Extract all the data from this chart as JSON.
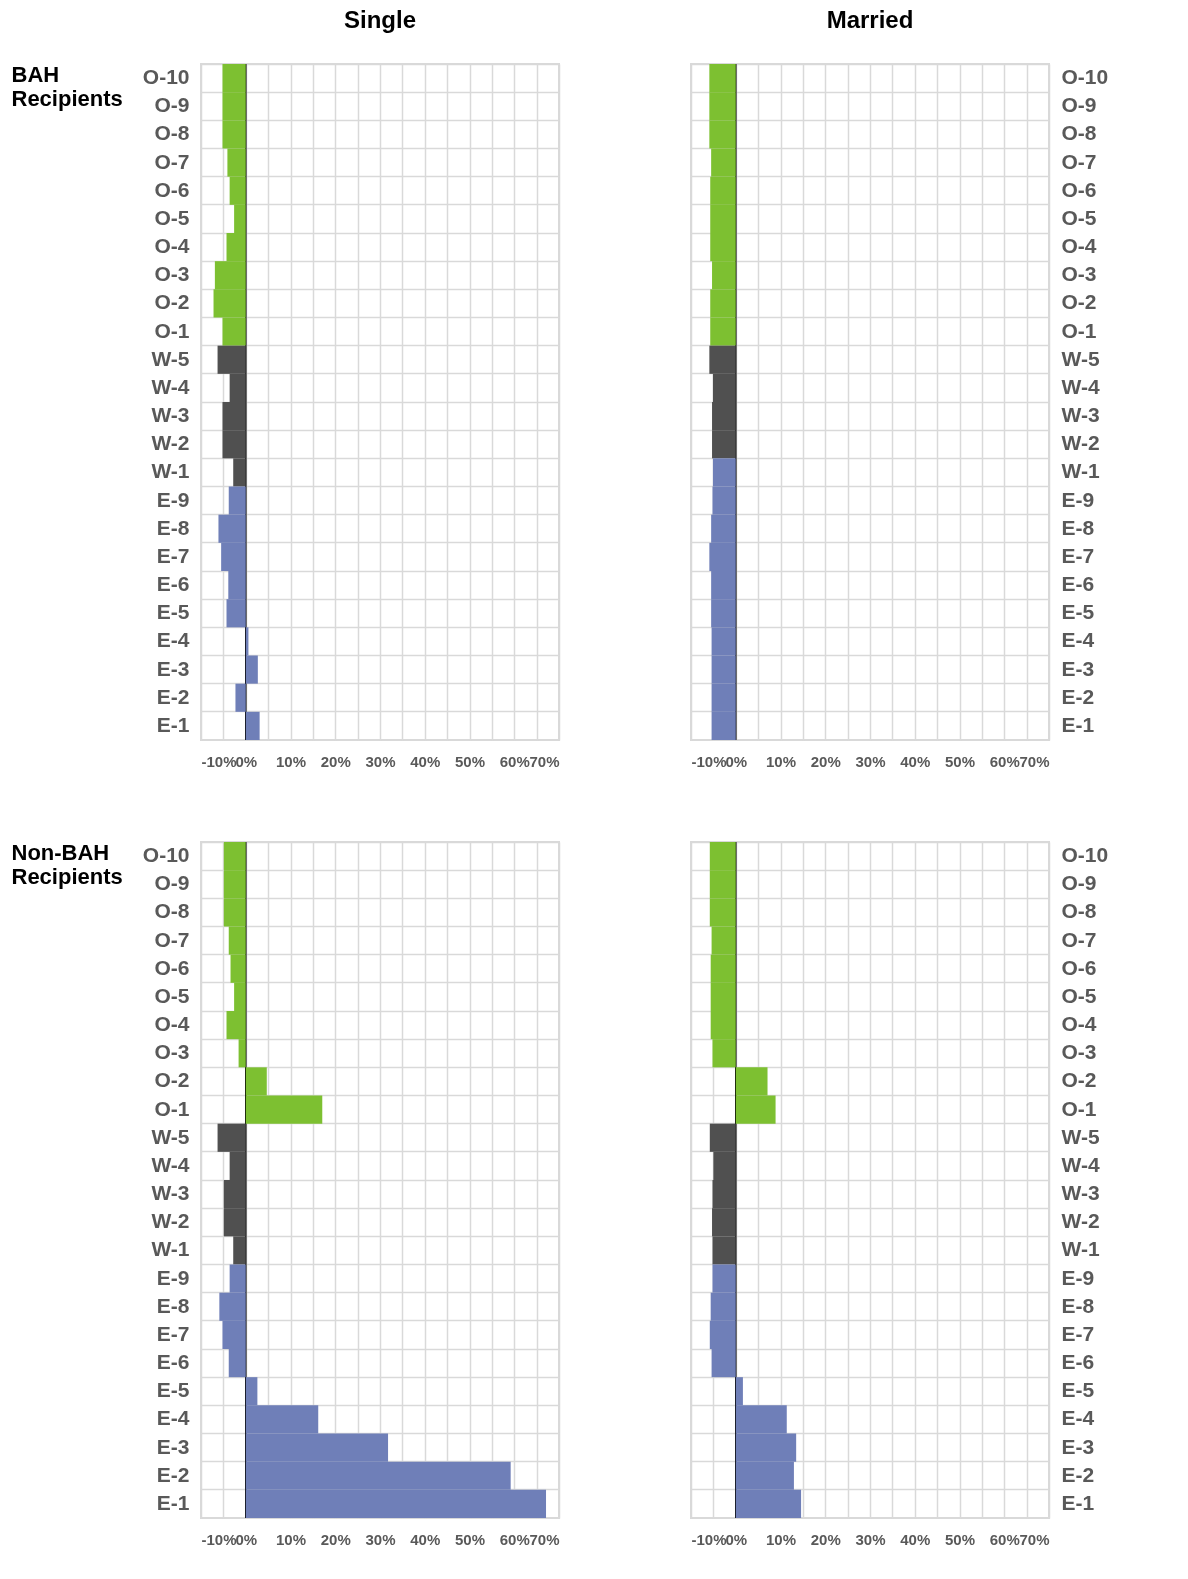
{
  "chart_data": [
    {
      "type": "bar",
      "orientation": "horizontal",
      "title": "Single",
      "ylabel": "BAH Recipients",
      "grid": true,
      "categories": [
        "O-10",
        "O-9",
        "O-8",
        "O-7",
        "O-6",
        "O-5",
        "O-4",
        "O-3",
        "O-2",
        "O-1",
        "W-5",
        "W-4",
        "W-3",
        "W-2",
        "W-1",
        "E-9",
        "E-8",
        "E-7",
        "E-6",
        "E-5",
        "E-4",
        "E-3",
        "E-2",
        "E-1"
      ],
      "series": [
        {
          "values": [
            -5.2,
            -5.2,
            -5.2,
            -4.1,
            -3.6,
            -2.6,
            -4.3,
            -6.9,
            -7.2,
            -5.2,
            -6.3,
            -3.6,
            -5.2,
            -5.2,
            -2.8,
            -3.8,
            -6.1,
            -5.5,
            -3.9,
            -4.3,
            0.6,
            2.7,
            -2.3,
            3.1
          ],
          "colors": [
            "#7dc031",
            "#7dc031",
            "#7dc031",
            "#7dc031",
            "#7dc031",
            "#7dc031",
            "#7dc031",
            "#7dc031",
            "#7dc031",
            "#7dc031",
            "#505050",
            "#505050",
            "#505050",
            "#505050",
            "#505050",
            "#6f7fb8",
            "#6f7fb8",
            "#6f7fb8",
            "#6f7fb8",
            "#6f7fb8",
            "#6f7fb8",
            "#6f7fb8",
            "#6f7fb8",
            "#6f7fb8"
          ]
        }
      ],
      "xlim": [
        -10,
        70
      ],
      "xticks": [
        {
          "value": -10,
          "label": "-10%"
        },
        {
          "value": -5,
          "label": null
        },
        {
          "value": 0,
          "label": "0%"
        },
        {
          "value": 5,
          "label": null
        },
        {
          "value": 10,
          "label": "10%"
        },
        {
          "value": 15,
          "label": null
        },
        {
          "value": 20,
          "label": "20%"
        },
        {
          "value": 25,
          "label": null
        },
        {
          "value": 30,
          "label": "30%"
        },
        {
          "value": 35,
          "label": null
        },
        {
          "value": 40,
          "label": "40%"
        },
        {
          "value": 45,
          "label": null
        },
        {
          "value": 50,
          "label": "50%"
        },
        {
          "value": 55,
          "label": null
        },
        {
          "value": 60,
          "label": "60%"
        },
        {
          "value": 65,
          "label": null
        },
        {
          "value": 70,
          "label": "70%"
        }
      ],
      "ref_lines": [
        {
          "axis": "x",
          "value": 0,
          "color": "#000000"
        }
      ]
    },
    {
      "type": "bar",
      "orientation": "horizontal",
      "title": "Married",
      "grid": true,
      "categories": [
        "O-10",
        "O-9",
        "O-8",
        "O-7",
        "O-6",
        "O-5",
        "O-4",
        "O-3",
        "O-2",
        "O-1",
        "W-5",
        "W-4",
        "W-3",
        "W-2",
        "W-1",
        "E-9",
        "E-8",
        "E-7",
        "E-6",
        "E-5",
        "E-4",
        "E-3",
        "E-2",
        "E-1"
      ],
      "series": [
        {
          "values": [
            -5.9,
            -5.9,
            -5.9,
            -5.5,
            -5.7,
            -5.7,
            -5.7,
            -5.3,
            -5.7,
            -5.7,
            -5.9,
            -5.1,
            -5.3,
            -5.3,
            -5.1,
            -5.2,
            -5.5,
            -5.9,
            -5.5,
            -5.5,
            -5.4,
            -5.4,
            -5.4,
            -5.4
          ],
          "colors": [
            "#7dc031",
            "#7dc031",
            "#7dc031",
            "#7dc031",
            "#7dc031",
            "#7dc031",
            "#7dc031",
            "#7dc031",
            "#7dc031",
            "#7dc031",
            "#505050",
            "#505050",
            "#505050",
            "#505050",
            "#6f7fb8",
            "#6f7fb8",
            "#6f7fb8",
            "#6f7fb8",
            "#6f7fb8",
            "#6f7fb8",
            "#6f7fb8",
            "#6f7fb8",
            "#6f7fb8",
            "#6f7fb8"
          ]
        }
      ],
      "xlim": [
        -10,
        70
      ],
      "xticks": [
        {
          "value": -10,
          "label": "-10%"
        },
        {
          "value": -5,
          "label": null
        },
        {
          "value": 0,
          "label": "0%"
        },
        {
          "value": 5,
          "label": null
        },
        {
          "value": 10,
          "label": "10%"
        },
        {
          "value": 15,
          "label": null
        },
        {
          "value": 20,
          "label": "20%"
        },
        {
          "value": 25,
          "label": null
        },
        {
          "value": 30,
          "label": "30%"
        },
        {
          "value": 35,
          "label": null
        },
        {
          "value": 40,
          "label": "40%"
        },
        {
          "value": 45,
          "label": null
        },
        {
          "value": 50,
          "label": "50%"
        },
        {
          "value": 55,
          "label": null
        },
        {
          "value": 60,
          "label": "60%"
        },
        {
          "value": 65,
          "label": null
        },
        {
          "value": 70,
          "label": "70%"
        }
      ],
      "ref_lines": [
        {
          "axis": "x",
          "value": 0,
          "color": "#000000"
        }
      ]
    },
    {
      "type": "bar",
      "orientation": "horizontal",
      "ylabel": "Non-BAH Recipients",
      "grid": true,
      "categories": [
        "O-10",
        "O-9",
        "O-8",
        "O-7",
        "O-6",
        "O-5",
        "O-4",
        "O-3",
        "O-2",
        "O-1",
        "W-5",
        "W-4",
        "W-3",
        "W-2",
        "W-1",
        "E-9",
        "E-8",
        "E-7",
        "E-6",
        "E-5",
        "E-4",
        "E-3",
        "E-2",
        "E-1"
      ],
      "series": [
        {
          "values": [
            -4.9,
            -4.9,
            -4.9,
            -3.8,
            -3.4,
            -2.6,
            -4.3,
            -1.6,
            4.7,
            17.1,
            -6.3,
            -3.6,
            -4.9,
            -4.9,
            -2.8,
            -3.6,
            -5.9,
            -5.2,
            -3.8,
            2.6,
            16.2,
            31.8,
            59.2,
            67.1
          ],
          "colors": [
            "#7dc031",
            "#7dc031",
            "#7dc031",
            "#7dc031",
            "#7dc031",
            "#7dc031",
            "#7dc031",
            "#7dc031",
            "#7dc031",
            "#7dc031",
            "#505050",
            "#505050",
            "#505050",
            "#505050",
            "#505050",
            "#6f7fb8",
            "#6f7fb8",
            "#6f7fb8",
            "#6f7fb8",
            "#6f7fb8",
            "#6f7fb8",
            "#6f7fb8",
            "#6f7fb8",
            "#6f7fb8"
          ]
        }
      ],
      "xlim": [
        -10,
        70
      ],
      "xticks": [
        {
          "value": -10,
          "label": "-10%"
        },
        {
          "value": -5,
          "label": null
        },
        {
          "value": 0,
          "label": "0%"
        },
        {
          "value": 5,
          "label": null
        },
        {
          "value": 10,
          "label": "10%"
        },
        {
          "value": 15,
          "label": null
        },
        {
          "value": 20,
          "label": "20%"
        },
        {
          "value": 25,
          "label": null
        },
        {
          "value": 30,
          "label": "30%"
        },
        {
          "value": 35,
          "label": null
        },
        {
          "value": 40,
          "label": "40%"
        },
        {
          "value": 45,
          "label": null
        },
        {
          "value": 50,
          "label": "50%"
        },
        {
          "value": 55,
          "label": null
        },
        {
          "value": 60,
          "label": "60%"
        },
        {
          "value": 65,
          "label": null
        },
        {
          "value": 70,
          "label": "70%"
        }
      ],
      "ref_lines": [
        {
          "axis": "x",
          "value": 0,
          "color": "#000000"
        }
      ]
    },
    {
      "type": "bar",
      "orientation": "horizontal",
      "grid": true,
      "categories": [
        "O-10",
        "O-9",
        "O-8",
        "O-7",
        "O-6",
        "O-5",
        "O-4",
        "O-3",
        "O-2",
        "O-1",
        "W-5",
        "W-4",
        "W-3",
        "W-2",
        "W-1",
        "E-9",
        "E-8",
        "E-7",
        "E-6",
        "E-5",
        "E-4",
        "E-3",
        "E-2",
        "E-1"
      ],
      "series": [
        {
          "values": [
            -5.8,
            -5.8,
            -5.8,
            -5.4,
            -5.6,
            -5.6,
            -5.6,
            -5.2,
            7.1,
            8.9,
            -5.8,
            -5.0,
            -5.2,
            -5.3,
            -5.2,
            -5.2,
            -5.6,
            -5.8,
            -5.4,
            1.6,
            11.4,
            13.5,
            13.0,
            14.6
          ],
          "colors": [
            "#7dc031",
            "#7dc031",
            "#7dc031",
            "#7dc031",
            "#7dc031",
            "#7dc031",
            "#7dc031",
            "#7dc031",
            "#7dc031",
            "#7dc031",
            "#505050",
            "#505050",
            "#505050",
            "#505050",
            "#505050",
            "#6f7fb8",
            "#6f7fb8",
            "#6f7fb8",
            "#6f7fb8",
            "#6f7fb8",
            "#6f7fb8",
            "#6f7fb8",
            "#6f7fb8",
            "#6f7fb8"
          ]
        }
      ],
      "xlim": [
        -10,
        70
      ],
      "xticks": [
        {
          "value": -10,
          "label": "-10%"
        },
        {
          "value": -5,
          "label": null
        },
        {
          "value": 0,
          "label": "0%"
        },
        {
          "value": 5,
          "label": null
        },
        {
          "value": 10,
          "label": "10%"
        },
        {
          "value": 15,
          "label": null
        },
        {
          "value": 20,
          "label": "20%"
        },
        {
          "value": 25,
          "label": null
        },
        {
          "value": 30,
          "label": "30%"
        },
        {
          "value": 35,
          "label": null
        },
        {
          "value": 40,
          "label": "40%"
        },
        {
          "value": 45,
          "label": null
        },
        {
          "value": 50,
          "label": "50%"
        },
        {
          "value": 55,
          "label": null
        },
        {
          "value": 60,
          "label": "60%"
        },
        {
          "value": 65,
          "label": null
        },
        {
          "value": 70,
          "label": "70%"
        }
      ],
      "ref_lines": [
        {
          "axis": "x",
          "value": 0,
          "color": "#000000"
        }
      ]
    }
  ]
}
